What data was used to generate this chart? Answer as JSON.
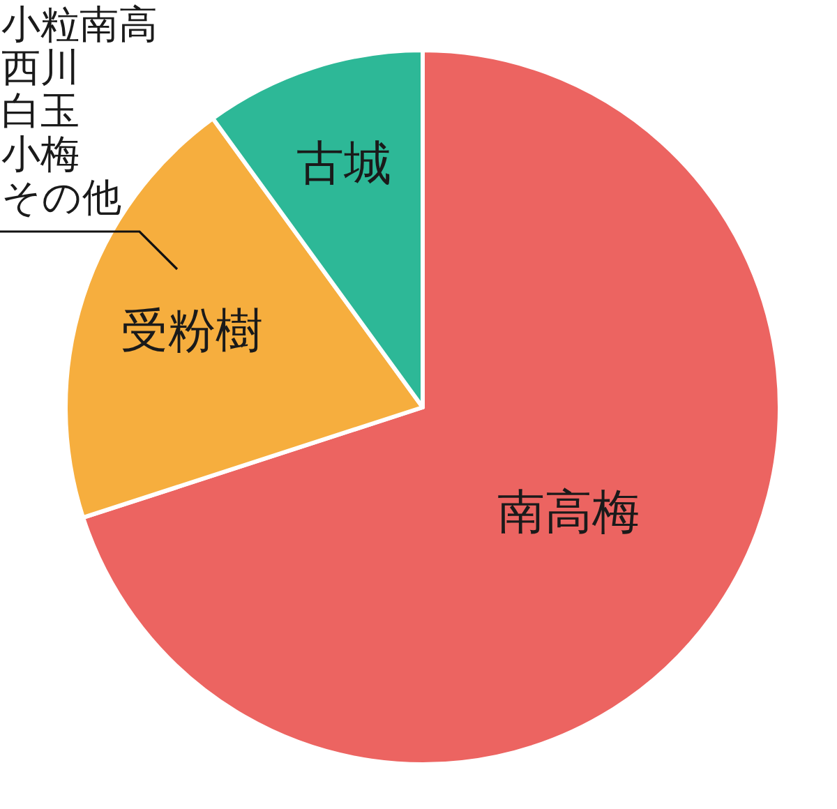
{
  "chart_data": {
    "type": "pie",
    "categories": [
      "南高梅",
      "受粉樹",
      "古城"
    ],
    "values": [
      70,
      20,
      10
    ],
    "colors": [
      "#ec6461",
      "#f6ae3e",
      "#2db897"
    ],
    "annotations": [
      "小粒南高",
      "西川",
      "白玉",
      "小梅",
      "その他"
    ]
  }
}
